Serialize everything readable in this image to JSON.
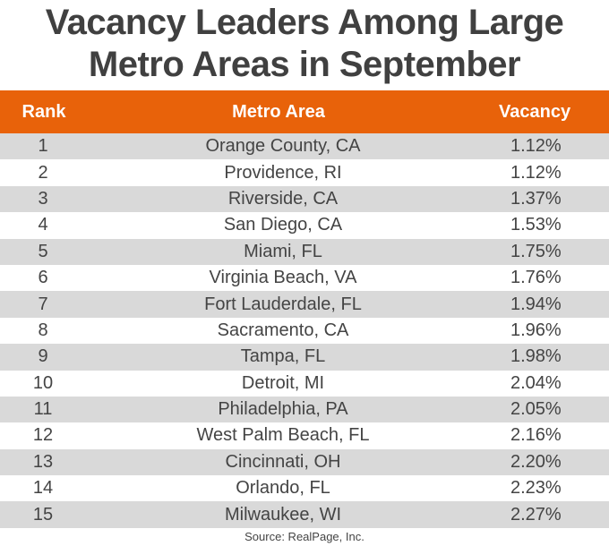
{
  "title": {
    "line1": "Vacancy Leaders Among Large",
    "line2": "Metro Areas in September"
  },
  "colors": {
    "header_bg": "#E8620A",
    "alt_row_bg": "#D9D9D9",
    "text": "#444444",
    "title": "#404040"
  },
  "table": {
    "headers": [
      "Rank",
      "Metro Area",
      "Vacancy"
    ],
    "rows": [
      {
        "rank": "1",
        "metro": "Orange County, CA",
        "vacancy": "1.12%"
      },
      {
        "rank": "2",
        "metro": "Providence, RI",
        "vacancy": "1.12%"
      },
      {
        "rank": "3",
        "metro": "Riverside, CA",
        "vacancy": "1.37%"
      },
      {
        "rank": "4",
        "metro": "San Diego, CA",
        "vacancy": "1.53%"
      },
      {
        "rank": "5",
        "metro": "Miami, FL",
        "vacancy": "1.75%"
      },
      {
        "rank": "6",
        "metro": "Virginia Beach, VA",
        "vacancy": "1.76%"
      },
      {
        "rank": "7",
        "metro": "Fort Lauderdale, FL",
        "vacancy": "1.94%"
      },
      {
        "rank": "8",
        "metro": "Sacramento, CA",
        "vacancy": "1.96%"
      },
      {
        "rank": "9",
        "metro": "Tampa, FL",
        "vacancy": "1.98%"
      },
      {
        "rank": "10",
        "metro": "Detroit, MI",
        "vacancy": "2.04%"
      },
      {
        "rank": "11",
        "metro": "Philadelphia, PA",
        "vacancy": "2.05%"
      },
      {
        "rank": "12",
        "metro": "West Palm Beach, FL",
        "vacancy": "2.16%"
      },
      {
        "rank": "13",
        "metro": "Cincinnati, OH",
        "vacancy": "2.20%"
      },
      {
        "rank": "14",
        "metro": "Orlando, FL",
        "vacancy": "2.23%"
      },
      {
        "rank": "15",
        "metro": "Milwaukee, WI",
        "vacancy": "2.27%"
      }
    ]
  },
  "source": "Source: RealPage, Inc."
}
